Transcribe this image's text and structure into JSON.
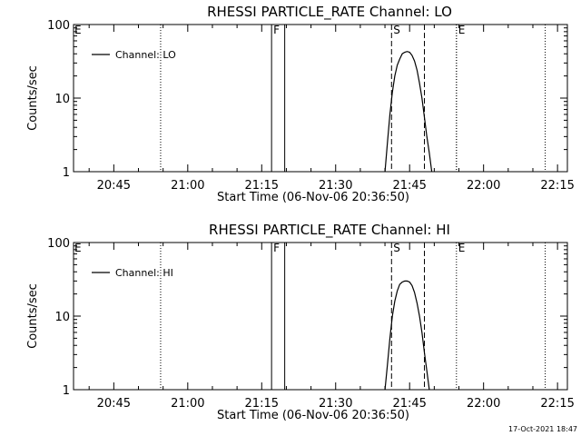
{
  "footer": {
    "timestamp": "17-Oct-2021 18:47"
  },
  "chart_data": [
    {
      "type": "line",
      "title": "RHESSI PARTICLE_RATE Channel: LO",
      "xlabel": "Start Time (06-Nov-06 20:36:50)",
      "ylabel": "Counts/sec",
      "xlim": [
        "20:36:50",
        "22:17:00"
      ],
      "ylim": [
        1,
        100
      ],
      "yscale": "log",
      "xticks": [
        "20:45",
        "21:00",
        "21:15",
        "21:30",
        "21:45",
        "22:00",
        "22:15"
      ],
      "yticks": [
        "1",
        "10",
        "100"
      ],
      "grid": false,
      "legend": {
        "position": "top-left",
        "entries": [
          "Channel: LO"
        ]
      },
      "series": [
        {
          "name": "Channel: LO",
          "x": [
            "21:40:00",
            "21:40:30",
            "21:41:00",
            "21:41:30",
            "21:42:00",
            "21:42:30",
            "21:43:00",
            "21:43:30",
            "21:44:00",
            "21:44:30",
            "21:45:00",
            "21:45:30",
            "21:46:00",
            "21:46:30",
            "21:47:00",
            "21:47:30",
            "21:48:00",
            "21:48:30",
            "21:49:00",
            "21:49:30"
          ],
          "y": [
            1,
            2.5,
            6,
            12,
            20,
            28,
            34,
            40,
            42,
            43,
            42,
            38,
            32,
            24,
            16,
            10,
            5.5,
            3,
            1.8,
            1
          ]
        }
      ],
      "vlines": [
        {
          "x": "21:54:30",
          "style": "dotted",
          "label": "E"
        },
        {
          "x": "21:54:30",
          "style": "dotted",
          "label": ""
        },
        {
          "x": "22:12:30",
          "style": "dotted",
          "label": ""
        },
        {
          "x": "20:54:30",
          "style": "dotted",
          "label": ""
        },
        {
          "x": "21:17:00",
          "style": "solid",
          "label": "F"
        },
        {
          "x": "21:19:40",
          "style": "solid",
          "label": ""
        },
        {
          "x": "21:41:20",
          "style": "dashed",
          "label": "S"
        },
        {
          "x": "21:48:00",
          "style": "dashed",
          "label": ""
        }
      ],
      "corner_labels": [
        "E"
      ]
    },
    {
      "type": "line",
      "title": "RHESSI PARTICLE_RATE Channel: HI",
      "xlabel": "Start Time (06-Nov-06 20:36:50)",
      "ylabel": "Counts/sec",
      "xlim": [
        "20:36:50",
        "22:17:00"
      ],
      "ylim": [
        1,
        100
      ],
      "yscale": "log",
      "xticks": [
        "20:45",
        "21:00",
        "21:15",
        "21:30",
        "21:45",
        "22:00",
        "22:15"
      ],
      "yticks": [
        "1",
        "10",
        "100"
      ],
      "grid": false,
      "legend": {
        "position": "top-left",
        "entries": [
          "Channel: HI"
        ]
      },
      "series": [
        {
          "name": "Channel: HI",
          "x": [
            "21:40:00",
            "21:40:30",
            "21:41:00",
            "21:41:30",
            "21:42:00",
            "21:42:30",
            "21:43:00",
            "21:43:30",
            "21:44:00",
            "21:44:30",
            "21:45:00",
            "21:45:30",
            "21:46:00",
            "21:46:30",
            "21:47:00",
            "21:47:30",
            "21:48:00",
            "21:48:30",
            "21:49:00"
          ],
          "y": [
            1,
            2.2,
            5,
            10,
            16,
            22,
            27,
            29,
            30,
            30,
            29,
            26,
            21,
            15,
            10,
            6,
            3.2,
            1.8,
            1
          ]
        }
      ],
      "vlines": [
        {
          "x": "21:54:30",
          "style": "dotted",
          "label": "E"
        },
        {
          "x": "22:12:30",
          "style": "dotted",
          "label": ""
        },
        {
          "x": "20:54:30",
          "style": "dotted",
          "label": ""
        },
        {
          "x": "21:17:00",
          "style": "solid",
          "label": "F"
        },
        {
          "x": "21:19:40",
          "style": "solid",
          "label": ""
        },
        {
          "x": "21:41:20",
          "style": "dashed",
          "label": "S"
        },
        {
          "x": "21:48:00",
          "style": "dashed",
          "label": ""
        }
      ],
      "corner_labels": [
        "E"
      ]
    }
  ]
}
